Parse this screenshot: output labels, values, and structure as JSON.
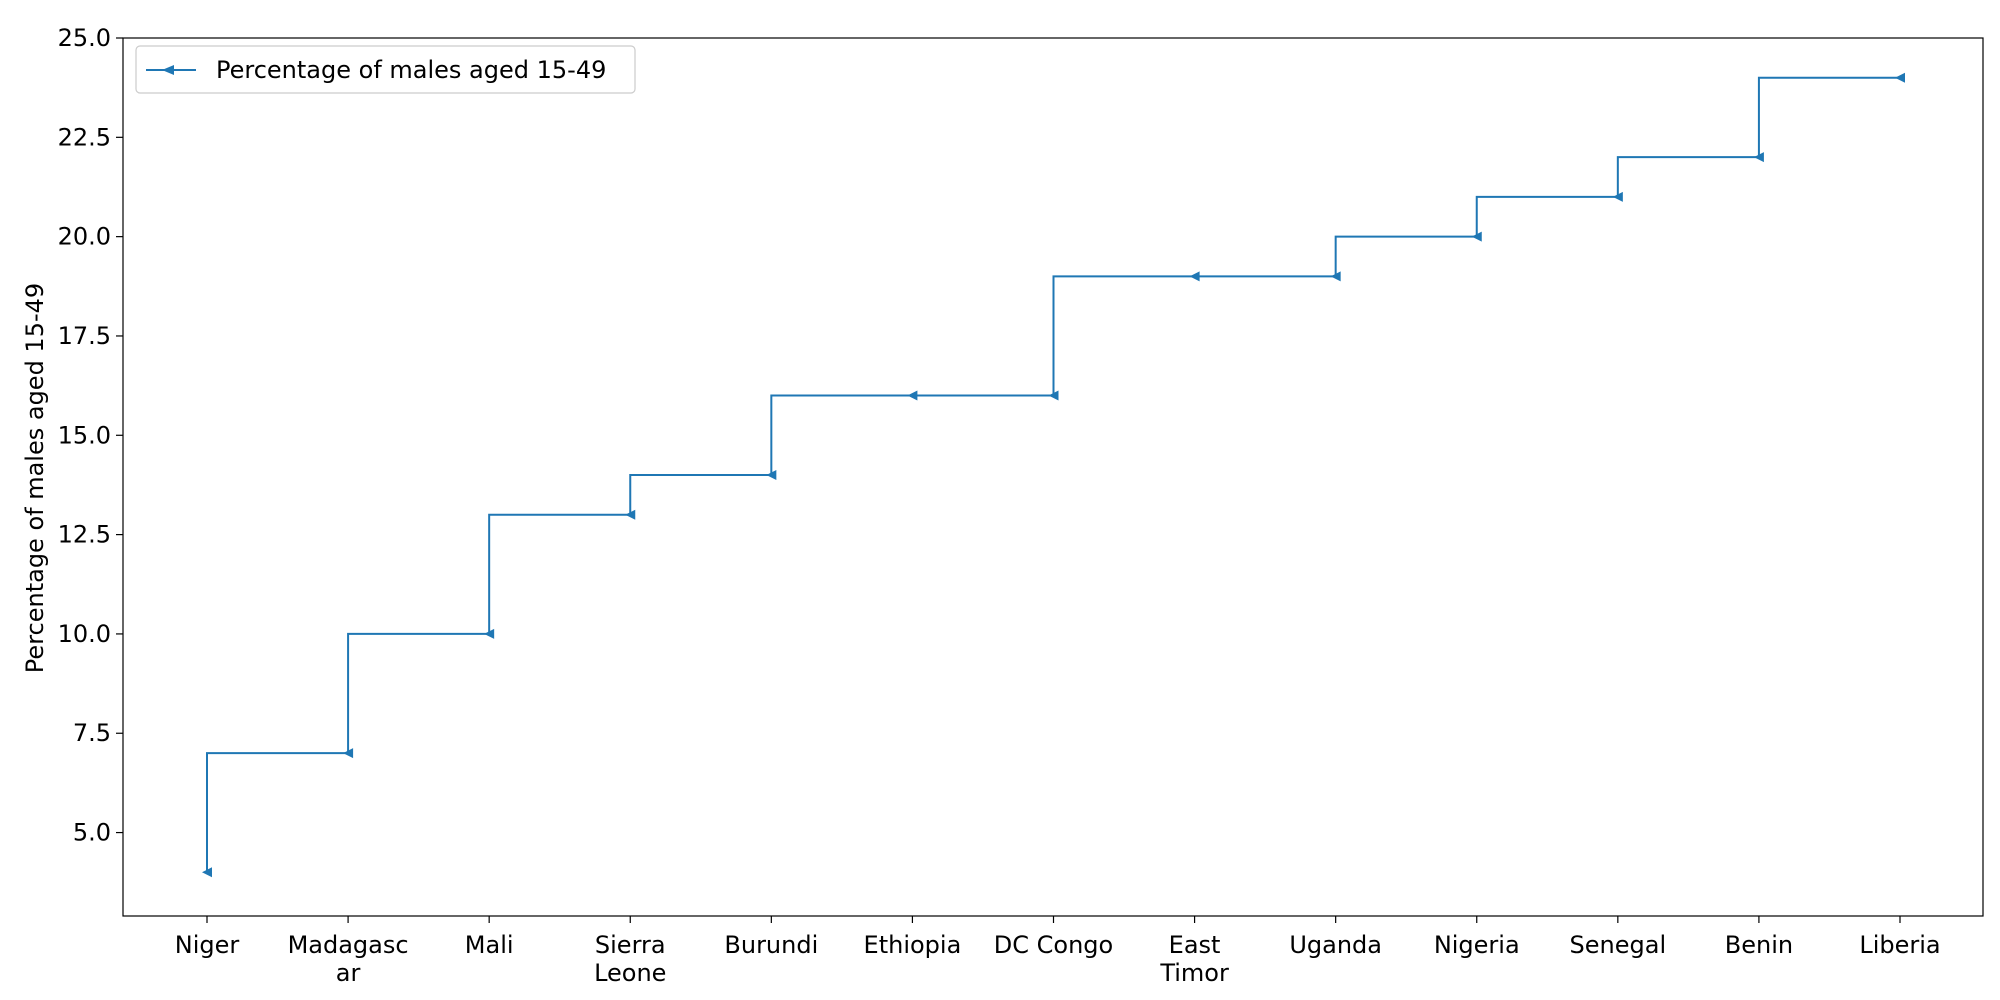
{
  "chart_data": {
    "type": "line",
    "subtype": "step",
    "step_where": "pre",
    "title": "",
    "xlabel": "",
    "ylabel": "Percentage of males aged 15-49",
    "categories": [
      "Niger",
      "Madagascar",
      "Mali",
      "Sierra Leone",
      "Burundi",
      "Ethiopia",
      "DC Congo",
      "East Timor",
      "Uganda",
      "Nigeria",
      "Senegal",
      "Benin",
      "Liberia"
    ],
    "category_tick_labels": [
      [
        "Niger"
      ],
      [
        "Madagasc",
        "ar"
      ],
      [
        "Mali"
      ],
      [
        "Sierra",
        "Leone"
      ],
      [
        "Burundi"
      ],
      [
        "Ethiopia"
      ],
      [
        "DC Congo"
      ],
      [
        "East",
        "Timor"
      ],
      [
        "Uganda"
      ],
      [
        "Nigeria"
      ],
      [
        "Senegal"
      ],
      [
        "Benin"
      ],
      [
        "Liberia"
      ]
    ],
    "series": [
      {
        "name": "Percentage of males aged 15-49",
        "values": [
          4,
          7,
          10,
          13,
          14,
          16,
          16,
          19,
          19,
          20,
          21,
          22,
          24
        ],
        "color": "#1f77b4",
        "marker": "triangle-left"
      }
    ],
    "ylim": [
      2.9,
      25.0
    ],
    "yticks": [
      "5.0",
      "7.5",
      "10.0",
      "12.5",
      "15.0",
      "17.5",
      "20.0",
      "22.5",
      "25.0"
    ],
    "grid": false,
    "legend_position": "upper-left"
  }
}
